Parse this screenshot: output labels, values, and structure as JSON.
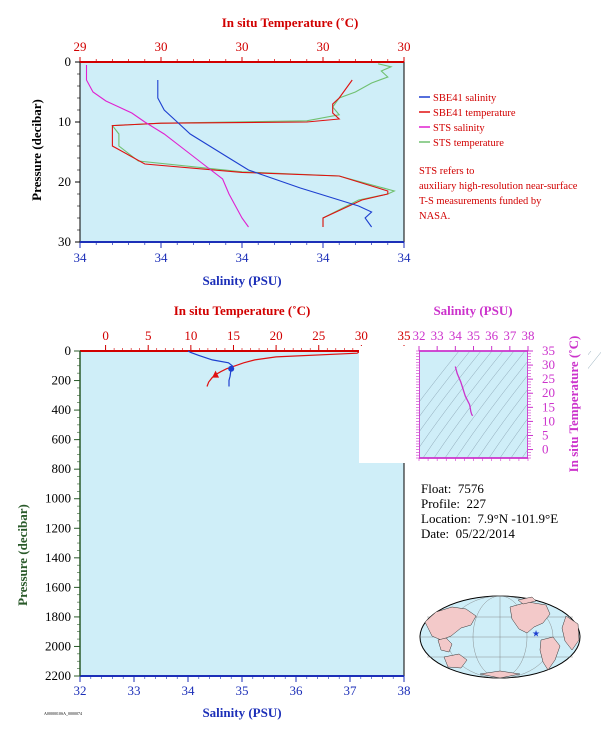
{
  "colors": {
    "temp_axis": "#d10000",
    "sal_axis": "#1c2fb8",
    "magenta": "#cc33cc",
    "plot_bg": "#cfeef8",
    "sbe_sal": "#1d3fd0",
    "sbe_temp": "#e01010",
    "sts_sal": "#e020d0",
    "sts_temp": "#70c070",
    "pressure_label_top": "#000000",
    "pressure_label_bottom": "#2a5a2a"
  },
  "chart_data": [
    {
      "type": "line",
      "title": "",
      "top_axis_label": "In situ Temperature (˚C)",
      "top_tick_labels": [
        "29",
        "30",
        "30",
        "30",
        "30"
      ],
      "xlabel": "Salinity (PSU)",
      "bottom_tick_labels": [
        "34",
        "34",
        "34",
        "34",
        "34"
      ],
      "ylabel": "Pressure (decibar)",
      "y_ticks": [
        0,
        10,
        20,
        30
      ],
      "ylim": [
        0,
        30
      ],
      "temp_lim": [
        29.0,
        30.0
      ],
      "sal_lim": [
        33.9,
        34.4
      ],
      "legend_position": "right",
      "legend": [
        "SBE41 salinity",
        "SBE41 temperature",
        "STS salinity",
        "STS temperature"
      ],
      "note": "STS refers to auxiliary high-resolution near-surface T-S measurements funded by NASA.",
      "series": [
        {
          "name": "SBE41 salinity",
          "axis": "salinity",
          "x": [
            34.02,
            34.02,
            34.03,
            34.05,
            34.07,
            34.1,
            34.13,
            34.16,
            34.2,
            34.24,
            34.27,
            34.3,
            34.33,
            34.35,
            34.34,
            34.35
          ],
          "y": [
            3,
            6,
            8,
            10,
            12,
            14,
            16,
            18,
            19.5,
            21,
            22,
            23,
            24,
            25,
            26,
            27.5
          ]
        },
        {
          "name": "SBE41 temperature",
          "axis": "temperature",
          "x": [
            29.84,
            29.8,
            29.78,
            29.78,
            29.8,
            29.7,
            29.25,
            29.1,
            29.1,
            29.1,
            29.2,
            29.5,
            29.8,
            29.95,
            29.95,
            29.87,
            29.75,
            29.75
          ],
          "y": [
            3,
            6,
            7,
            8.5,
            9.5,
            10,
            10.2,
            10.6,
            12,
            14,
            17,
            18.4,
            19,
            21.5,
            22,
            23,
            26,
            27.5
          ]
        },
        {
          "name": "STS salinity",
          "axis": "salinity",
          "x": [
            33.91,
            33.91,
            33.92,
            33.94,
            33.96,
            33.98,
            34.0,
            34.03,
            34.06,
            34.09,
            34.12,
            34.13,
            34.14,
            34.15,
            34.16
          ],
          "y": [
            0.5,
            3,
            5,
            6.5,
            7.5,
            8.5,
            10,
            12,
            14.5,
            17,
            19.5,
            22,
            24,
            26,
            27.5
          ]
        },
        {
          "name": "STS temperature",
          "axis": "temperature",
          "x": [
            29.92,
            29.96,
            29.93,
            29.95,
            29.9,
            29.85,
            29.8,
            29.78,
            29.8,
            29.7,
            29.25,
            29.1,
            29.12,
            29.12,
            29.18,
            29.5,
            29.8,
            29.97,
            29.95,
            29.86,
            29.75,
            29.75
          ],
          "y": [
            0.3,
            0.8,
            1.5,
            2.5,
            3.5,
            5,
            6,
            7.5,
            8.8,
            9.8,
            10.2,
            10.6,
            12,
            14,
            16.5,
            18.3,
            19,
            21.5,
            22,
            23,
            26,
            27.5
          ]
        }
      ]
    },
    {
      "type": "line",
      "title": "",
      "top_axis_label": "In situ Temperature (˚C)",
      "top_tick_labels": [
        "0",
        "5",
        "10",
        "15",
        "20",
        "25",
        "30",
        "35"
      ],
      "temp_lim": [
        -3,
        35
      ],
      "xlabel": "Salinity (PSU)",
      "bottom_tick_labels": [
        "32",
        "33",
        "34",
        "35",
        "36",
        "37",
        "38"
      ],
      "sal_lim": [
        32,
        38
      ],
      "ylabel": "Pressure (decibar)",
      "y_tick_labels": [
        "0",
        "200",
        "400",
        "600",
        "800",
        "1000",
        "1200",
        "1400",
        "1600",
        "1800",
        "2000",
        "2200"
      ],
      "ylim": [
        0,
        2200
      ],
      "series": [
        {
          "name": "SBE41 temperature",
          "axis": "temperature",
          "x": [
            29.9,
            29.5,
            20,
            17.5,
            16.2,
            15.2,
            14.2,
            13.5,
            12.9,
            12.5,
            12.1,
            11.9
          ],
          "y": [
            0,
            15,
            40,
            60,
            80,
            100,
            120,
            140,
            160,
            180,
            210,
            240
          ]
        },
        {
          "name": "SBE41 salinity",
          "axis": "salinity",
          "x": [
            34.0,
            34.05,
            34.2,
            34.45,
            34.75,
            34.82,
            34.8,
            34.79,
            34.78,
            34.76,
            34.76
          ],
          "y": [
            0,
            10,
            30,
            60,
            80,
            100,
            120,
            140,
            170,
            200,
            240
          ]
        }
      ]
    },
    {
      "type": "line",
      "title": "",
      "xlabel": "Salinity (PSU)",
      "x_tick_labels": [
        "32",
        "33",
        "34",
        "35",
        "36",
        "37",
        "38"
      ],
      "xlim": [
        32,
        38
      ],
      "ylabel": "In situ Temperature (˚C)",
      "y_tick_labels": [
        "0",
        "5",
        "10",
        "15",
        "20",
        "25",
        "30",
        "35"
      ],
      "ylim": [
        -3,
        35
      ],
      "series": [
        {
          "name": "T-S profile",
          "x": [
            34.0,
            34.1,
            34.3,
            34.55,
            34.78,
            34.8,
            34.85,
            34.9,
            34.95
          ],
          "y": [
            29.5,
            27,
            24,
            19,
            16,
            15.5,
            13.5,
            12.5,
            12
          ]
        }
      ]
    }
  ],
  "float_info": {
    "float_label": "Float:",
    "float_value": "7576",
    "profile_label": "Profile:",
    "profile_value": "227",
    "location_label": "Location:",
    "location_value": "7.9°N  -101.9°E",
    "date_label": "Date:",
    "date_value": "05/22/2014"
  },
  "map": {
    "marker_symbol": "★",
    "marker_lat": 7.9,
    "marker_lon": -101.9
  },
  "footer_code": "A0000010SA_0000074"
}
